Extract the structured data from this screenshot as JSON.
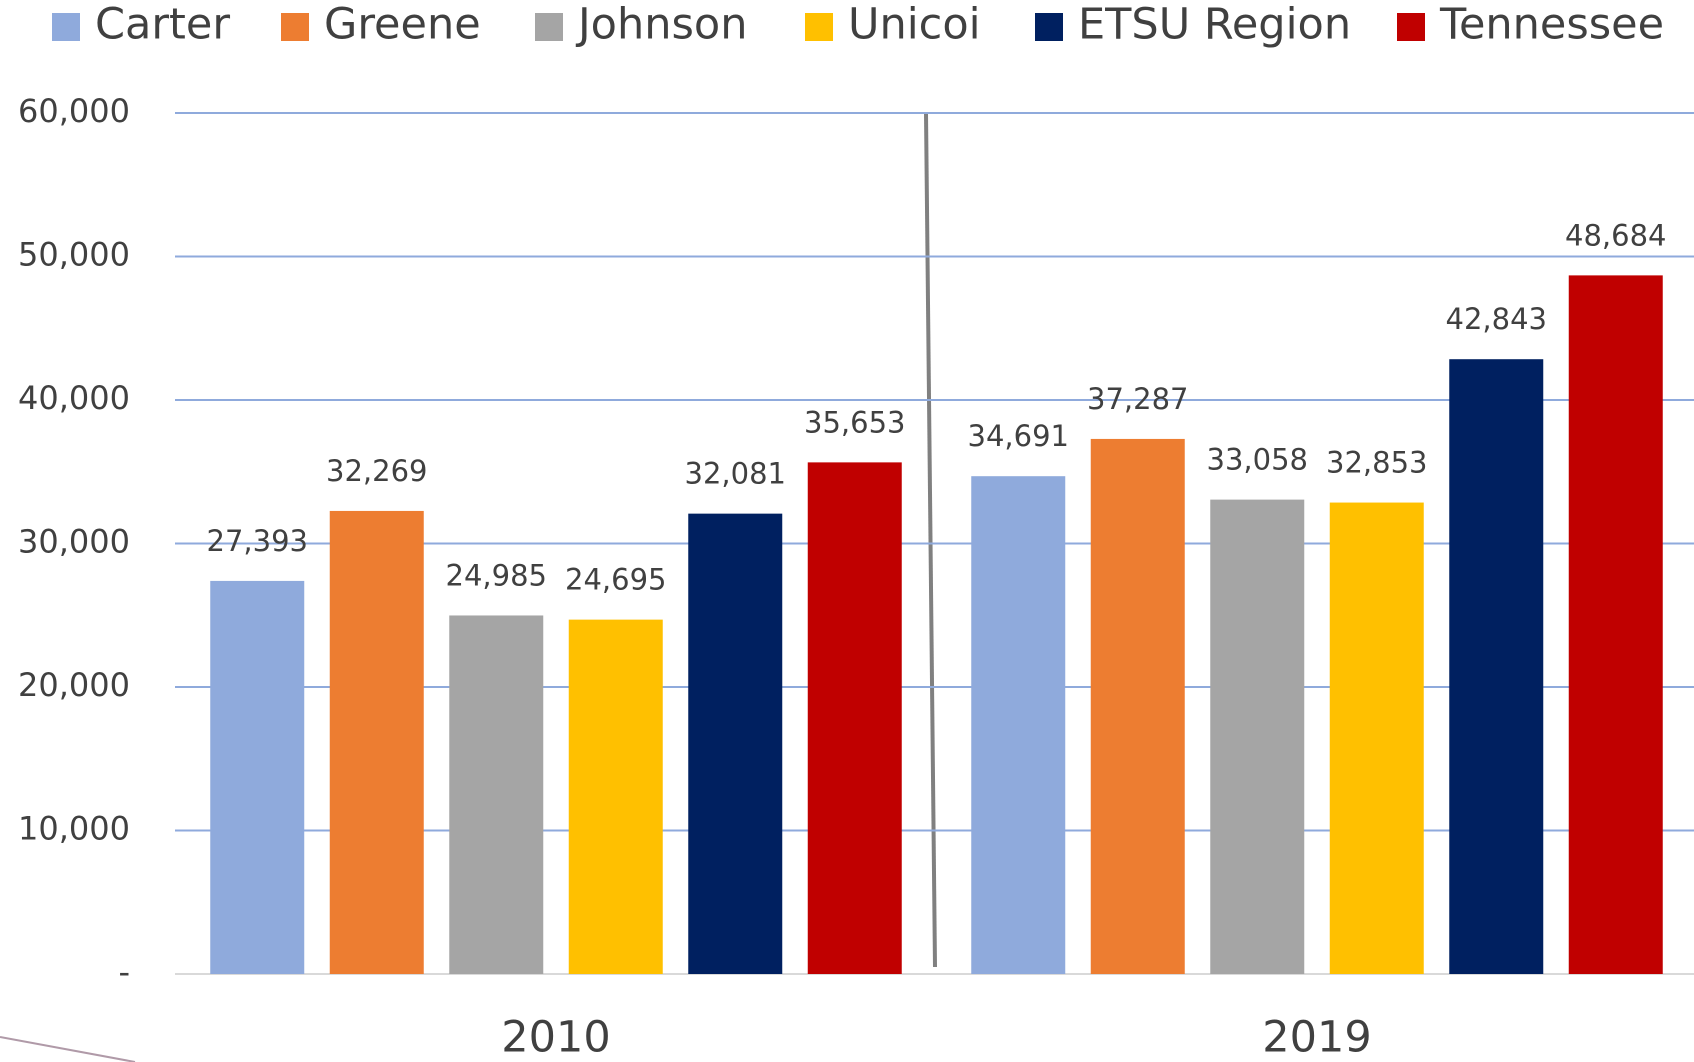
{
  "chart_data": {
    "type": "bar",
    "categories": [
      "2010",
      "2019"
    ],
    "series": [
      {
        "name": "Carter",
        "color": "#8faadc",
        "values": [
          27393,
          34691
        ],
        "value_labels": [
          "27,393",
          "34,691"
        ]
      },
      {
        "name": "Greene",
        "color": "#ed7d31",
        "values": [
          32269,
          37287
        ],
        "value_labels": [
          "32,269",
          "37,287"
        ]
      },
      {
        "name": "Johnson",
        "color": "#a5a5a5",
        "values": [
          24985,
          33058
        ],
        "value_labels": [
          "24,985",
          "33,058"
        ]
      },
      {
        "name": "Unicoi",
        "color": "#ffc000",
        "values": [
          24695,
          32853
        ],
        "value_labels": [
          "24,695",
          "32,853"
        ]
      },
      {
        "name": "ETSU Region",
        "color": "#002060",
        "values": [
          32081,
          42843
        ],
        "value_labels": [
          "32,081",
          "42,843"
        ]
      },
      {
        "name": "Tennessee",
        "color": "#c00000",
        "values": [
          35653,
          48684
        ],
        "value_labels": [
          "35,653",
          "48,684"
        ]
      }
    ],
    "ylim": [
      0,
      60000
    ],
    "yticks": [
      {
        "value": 0,
        "label": "-"
      },
      {
        "value": 10000,
        "label": "10,000"
      },
      {
        "value": 20000,
        "label": "20,000"
      },
      {
        "value": 30000,
        "label": "30,000"
      },
      {
        "value": 40000,
        "label": "40,000"
      },
      {
        "value": 50000,
        "label": "50,000"
      },
      {
        "value": 60000,
        "label": "60,000"
      }
    ],
    "grid": true,
    "legend": "top"
  }
}
